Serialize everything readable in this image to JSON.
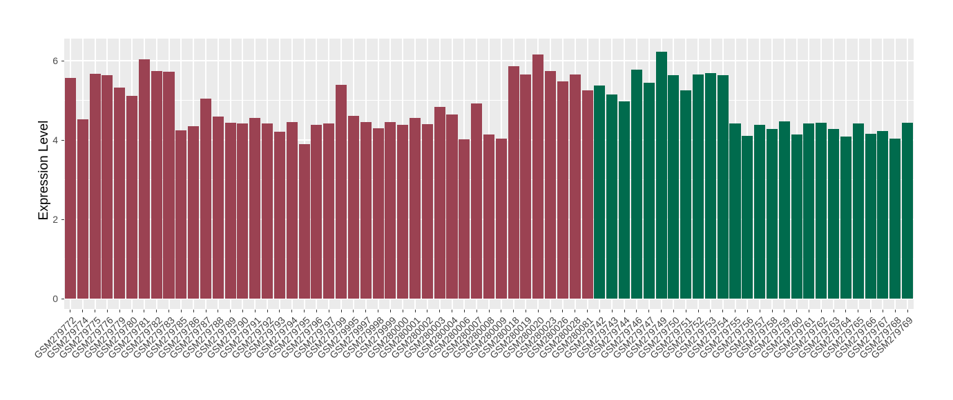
{
  "colors": {
    "panel_background": "#EBEBEB",
    "gridline": "#FFFFFF",
    "axis_text": "#404040",
    "tick_mark": "#333333",
    "group1_bar": "#9B4252",
    "group2_bar": "#006B4D",
    "figure_background": "#FFFFFF"
  },
  "chart_data": {
    "type": "bar",
    "title": "",
    "xlabel": "",
    "ylabel": "Expression Level",
    "ylim": [
      0,
      6.56
    ],
    "yticks": [
      0,
      2,
      4,
      6
    ],
    "grid": true,
    "legend_position": "none",
    "categories": [
      "GSM279772",
      "GSM279774",
      "GSM279775",
      "GSM279776",
      "GSM279779",
      "GSM279780",
      "GSM279781",
      "GSM279782",
      "GSM279783",
      "GSM279785",
      "GSM279786",
      "GSM279787",
      "GSM279788",
      "GSM279789",
      "GSM279790",
      "GSM279791",
      "GSM279792",
      "GSM279793",
      "GSM279794",
      "GSM279795",
      "GSM279796",
      "GSM279797",
      "GSM279799",
      "GSM279995",
      "GSM279997",
      "GSM279998",
      "GSM279999",
      "GSM280000",
      "GSM280001",
      "GSM280002",
      "GSM280003",
      "GSM280004",
      "GSM280006",
      "GSM280007",
      "GSM280008",
      "GSM280009",
      "GSM280018",
      "GSM280019",
      "GSM280020",
      "GSM280023",
      "GSM280026",
      "GSM280028",
      "GSM280081",
      "GSM279742",
      "GSM279743",
      "GSM279744",
      "GSM279746",
      "GSM279747",
      "GSM279749",
      "GSM279750",
      "GSM279751",
      "GSM279752",
      "GSM279753",
      "GSM279754",
      "GSM279755",
      "GSM279756",
      "GSM279757",
      "GSM279758",
      "GSM279759",
      "GSM279760",
      "GSM279761",
      "GSM279762",
      "GSM279763",
      "GSM279764",
      "GSM279765",
      "GSM279766",
      "GSM279767",
      "GSM279768",
      "GSM279769"
    ],
    "values": [
      5.56,
      4.53,
      5.67,
      5.63,
      5.33,
      5.11,
      6.04,
      5.74,
      5.73,
      4.24,
      4.34,
      5.05,
      4.6,
      4.44,
      4.42,
      4.56,
      4.42,
      4.21,
      4.45,
      3.89,
      4.38,
      4.42,
      5.4,
      4.61,
      4.46,
      4.3,
      4.45,
      4.38,
      4.55,
      4.4,
      4.83,
      4.64,
      4.01,
      4.92,
      4.14,
      4.03,
      5.86,
      5.65,
      6.15,
      5.74,
      5.47,
      5.65,
      5.25,
      5.37,
      5.15,
      4.97,
      5.77,
      5.44,
      6.23,
      5.63,
      5.26,
      5.65,
      5.69,
      5.63,
      4.41,
      4.11,
      4.39,
      4.28,
      4.47,
      4.14,
      4.42,
      4.44,
      4.28,
      4.09,
      4.42,
      4.16,
      4.23,
      4.03,
      4.44
    ],
    "groups": [
      {
        "color": "#9B4252",
        "start": 0,
        "end": 42
      },
      {
        "color": "#006B4D",
        "start": 43,
        "end": 68
      }
    ]
  }
}
